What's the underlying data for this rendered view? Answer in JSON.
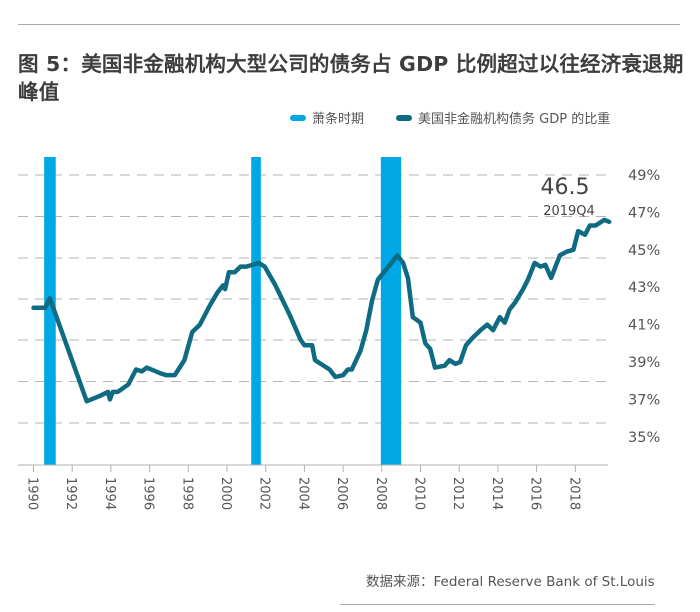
{
  "title": "图 5：美国非金融机构大型公司的债务占 GDP 比例超过以往经济衰退期峰值",
  "source": "数据来源：Federal Reserve Bank of St.Louis",
  "colors": {
    "recession": "#00a8e6",
    "series": "#0f6b82",
    "grid": "#b5b5b5",
    "axis": "#b0b0b0"
  },
  "legend": [
    {
      "label": "萧条时期",
      "color": "#00a8e6"
    },
    {
      "label": "美国非金融机构债务 GDP 的比重",
      "color": "#0f6b82"
    }
  ],
  "chart_data": {
    "type": "line",
    "title": "图 5：美国非金融机构大型公司的债务占 GDP 比例超过以往经济衰退期峰值",
    "xlabel": "",
    "ylabel": "",
    "xlim": [
      1990,
      2020
    ],
    "ylim": [
      35,
      49
    ],
    "y_axis_side": "right",
    "grid": true,
    "legend_position": "top-right",
    "x_ticks": [
      1990,
      1992,
      1994,
      1996,
      1998,
      2000,
      2002,
      2004,
      2006,
      2008,
      2010,
      2012,
      2014,
      2016,
      2018
    ],
    "x_tick_labels": [
      "1990",
      "1992",
      "1994",
      "1996",
      "1998",
      "2000",
      "2002",
      "2004",
      "2006",
      "2008",
      "2010",
      "2012",
      "2014",
      "2016",
      "2018"
    ],
    "y_ticks": [
      49,
      47,
      45,
      43,
      41,
      39,
      37,
      35
    ],
    "y_tick_labels": [
      "49%",
      "47%",
      "45%",
      "43%",
      "41%",
      "39%",
      "37%",
      "35%"
    ],
    "recessions": [
      {
        "name": "萧条时期",
        "start": 1990.55,
        "end": 1991.15
      },
      {
        "name": "萧条时期",
        "start": 2001.25,
        "end": 2001.75
      },
      {
        "name": "萧条时期",
        "start": 2007.95,
        "end": 2009.0
      }
    ],
    "series": [
      {
        "name": "美国非金融机构债务 GDP 的比重",
        "x": [
          1990.0,
          1990.6,
          1990.85,
          1992.75,
          1993.45,
          1993.85,
          1993.95,
          1994.1,
          1994.35,
          1994.9,
          1995.3,
          1995.6,
          1995.85,
          1996.55,
          1996.85,
          1997.3,
          1997.8,
          1998.2,
          1998.6,
          1999.1,
          1999.5,
          1999.8,
          1999.9,
          2000.1,
          2000.4,
          2000.7,
          2001.0,
          2001.65,
          2001.95,
          2002.5,
          2003.25,
          2003.8,
          2004.0,
          2004.4,
          2004.55,
          2005.3,
          2005.6,
          2006.0,
          2006.25,
          2006.45,
          2006.9,
          2007.2,
          2007.5,
          2007.8,
          2008.5,
          2008.8,
          2009.1,
          2009.35,
          2009.6,
          2010.0,
          2010.25,
          2010.5,
          2010.75,
          2011.25,
          2011.5,
          2011.8,
          2012.05,
          2012.35,
          2012.7,
          2013.1,
          2013.45,
          2013.75,
          2014.1,
          2014.35,
          2014.6,
          2014.9,
          2015.3,
          2015.55,
          2015.9,
          2016.2,
          2016.45,
          2016.75,
          2017.2,
          2017.55,
          2017.9,
          2018.15,
          2018.5,
          2018.75,
          2019.05,
          2019.5,
          2019.75
        ],
        "values": [
          41.9,
          41.9,
          42.4,
          36.9,
          37.2,
          37.4,
          37.0,
          37.4,
          37.4,
          37.8,
          38.6,
          38.5,
          38.7,
          38.4,
          38.3,
          38.3,
          39.1,
          40.6,
          41.0,
          42.0,
          42.7,
          43.1,
          42.9,
          43.8,
          43.8,
          44.1,
          44.1,
          44.3,
          44.1,
          43.1,
          41.5,
          40.2,
          39.9,
          39.9,
          39.1,
          38.6,
          38.2,
          38.3,
          38.6,
          38.6,
          39.6,
          40.7,
          42.3,
          43.4,
          44.3,
          44.7,
          44.3,
          43.5,
          41.4,
          41.1,
          40.0,
          39.7,
          38.7,
          38.8,
          39.1,
          38.9,
          39.0,
          39.9,
          40.3,
          40.7,
          41.0,
          40.7,
          41.4,
          41.1,
          41.8,
          42.2,
          42.9,
          43.4,
          44.3,
          44.1,
          44.2,
          43.5,
          44.7,
          44.9,
          45.0,
          46.0,
          45.8,
          46.3,
          46.3,
          46.6,
          46.5
        ]
      }
    ],
    "annotations": [
      {
        "value_label": "46.5",
        "date_label": "2019Q4",
        "x": 2019.75,
        "y": 46.5
      }
    ]
  }
}
